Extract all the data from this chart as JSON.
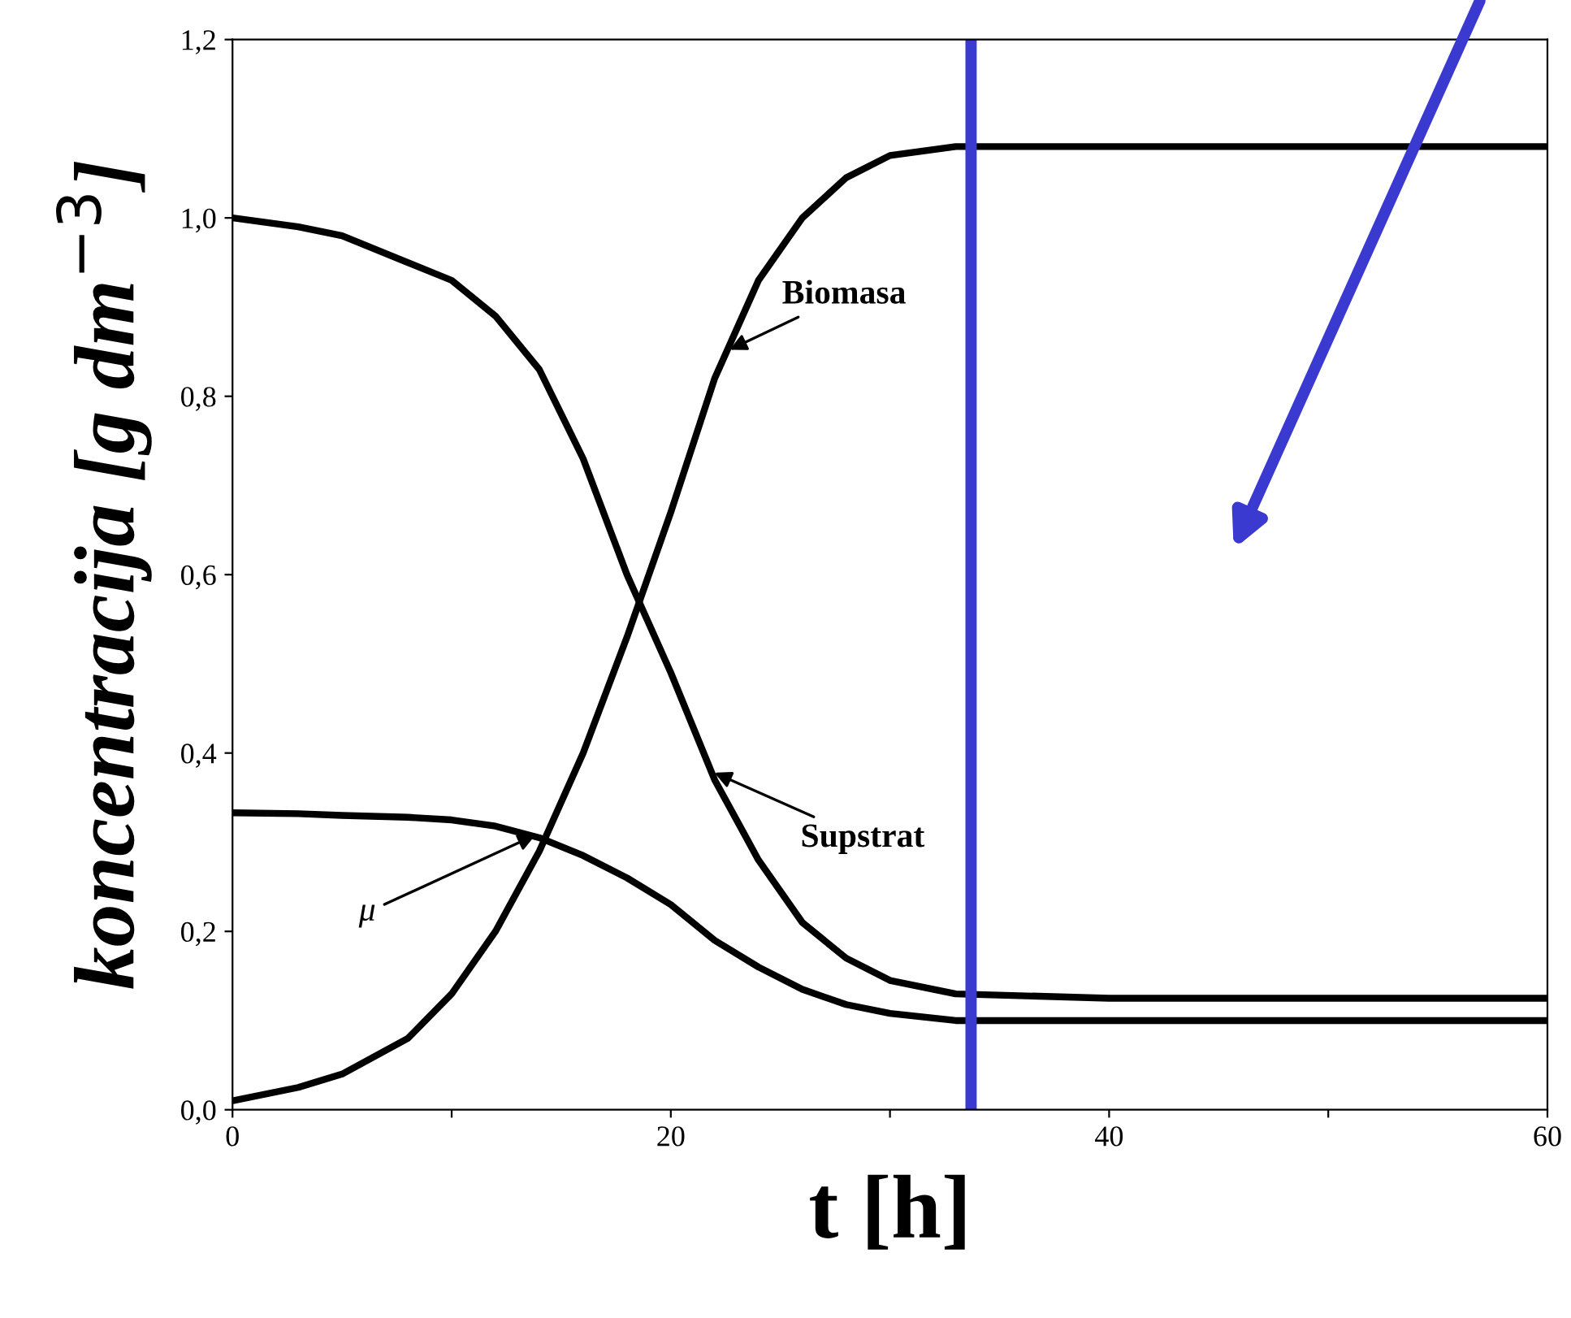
{
  "chart_data": {
    "type": "line",
    "xlabel": "t [h]",
    "ylabel": "koncentracija [g dm$^{−3}$]",
    "series": [
      {
        "color": "#000000",
        "x": [
          0,
          3,
          5,
          8,
          10,
          12,
          14,
          16,
          18,
          20,
          22,
          24,
          26,
          28,
          30,
          33,
          40,
          50,
          60
        ],
        "values": [
          0.01,
          0.025,
          0.04,
          0.08,
          0.13,
          0.2,
          0.29,
          0.4,
          0.53,
          0.67,
          0.82,
          0.93,
          1.0,
          1.045,
          1.07,
          1.08,
          1.08,
          1.08,
          1.08
        ]
      },
      {
        "color": "#000000",
        "x": [
          0,
          3,
          5,
          8,
          10,
          12,
          14,
          16,
          18,
          20,
          22,
          24,
          26,
          28,
          30,
          33,
          40,
          50,
          60
        ],
        "values": [
          1.0,
          0.99,
          0.98,
          0.95,
          0.93,
          0.89,
          0.83,
          0.73,
          0.6,
          0.49,
          0.37,
          0.28,
          0.21,
          0.17,
          0.145,
          0.13,
          0.125,
          0.125,
          0.125
        ]
      },
      {
        "color": "#000000",
        "x": [
          0,
          3,
          5,
          8,
          10,
          12,
          14,
          16,
          18,
          20,
          22,
          24,
          26,
          28,
          30,
          33,
          40,
          50,
          60
        ],
        "values": [
          0.333,
          0.332,
          0.33,
          0.328,
          0.325,
          0.318,
          0.305,
          0.285,
          0.26,
          0.23,
          0.19,
          0.16,
          0.135,
          0.118,
          0.108,
          0.1,
          0.1,
          0.1,
          0.1
        ]
      }
    ],
    "annotations": [
      {
        "text": "Biomasa",
        "x": 22.5,
        "y": 0.85
      },
      {
        "text": "Supstrat",
        "x": 21.8,
        "y": 0.38
      },
      {
        "text": "μ",
        "x": 14,
        "y": 0.31
      }
    ],
    "ref_lines": [
      {
        "axis": "x",
        "value": 33.7,
        "color": "#3a3ad0"
      }
    ],
    "xlim": [
      0,
      60
    ],
    "ylim": [
      0,
      1.2
    ],
    "xticks": [
      0,
      {
        "value": 10,
        "label": null
      },
      20,
      {
        "value": 30,
        "label": null
      },
      40,
      {
        "value": 50,
        "label": null
      },
      60
    ],
    "yticks": [
      {
        "value": 0,
        "label": "0,0"
      },
      {
        "value": 0.2,
        "label": "0,2"
      },
      {
        "value": 0.4,
        "label": "0,4"
      },
      {
        "value": 0.6,
        "label": "0,6"
      },
      {
        "value": 0.8,
        "label": "0,8"
      },
      {
        "value": 1.0,
        "label": "1,0"
      },
      {
        "value": 1.2,
        "label": "1,2"
      }
    ],
    "grid": false,
    "legend": false,
    "marker": "none",
    "line_style": "solid"
  }
}
